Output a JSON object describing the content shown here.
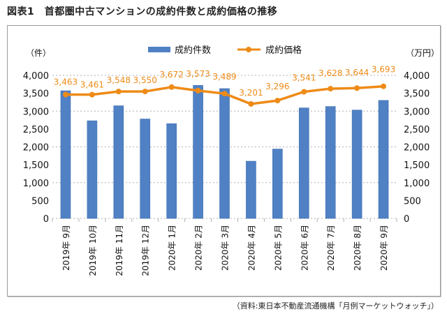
{
  "title": "図表1　首都圏中古マンションの成約件数と成約価格の推移",
  "source": "（資料:東日本不動産流通機構「月例マーケットウォッチ」）",
  "colors": {
    "bar": "#4F81C4",
    "line": "#EE8B17",
    "grid": "#b0b0b0"
  },
  "chart_data": {
    "type": "bar+line",
    "title": "首都圏中古マンションの成約件数と成約価格の推移",
    "categories": [
      "2019年 9月",
      "2019年 10月",
      "2019年 11月",
      "2019年 12月",
      "2020年 1月",
      "2020年 2月",
      "2020年 3月",
      "2020年 4月",
      "2020年 5月",
      "2020年 6月",
      "2020年 7月",
      "2020年 8月",
      "2020年 9月"
    ],
    "series": [
      {
        "name": "成約件数",
        "type": "bar",
        "axis": "left",
        "values": [
          3570,
          2730,
          3150,
          2780,
          2650,
          3720,
          3630,
          1600,
          1940,
          3090,
          3130,
          3030,
          3300
        ]
      },
      {
        "name": "成約価格",
        "type": "line",
        "axis": "right",
        "values": [
          3463,
          3461,
          3548,
          3550,
          3672,
          3573,
          3489,
          3201,
          3296,
          3541,
          3628,
          3644,
          3693
        ],
        "labels": [
          "3,463",
          "3,461",
          "3,548",
          "3,550",
          "3,672",
          "3,573",
          "3,489",
          "3,201",
          "3,296",
          "3,541",
          "3,628",
          "3,644",
          "3,693"
        ]
      }
    ],
    "y_left": {
      "unit": "（件）",
      "ylim": [
        0,
        4000
      ],
      "ticks": [
        "0",
        "500",
        "1,000",
        "1,500",
        "2,000",
        "2,500",
        "3,000",
        "3,500",
        "4,000"
      ]
    },
    "y_right": {
      "unit": "（万円）",
      "ylim": [
        0,
        4000
      ],
      "ticks": [
        "0",
        "500",
        "1,000",
        "1,500",
        "2,000",
        "2,500",
        "3,000",
        "3,500",
        "4,000"
      ]
    },
    "grid": true,
    "legend": {
      "position": "top-center",
      "entries": [
        "成約件数",
        "成約価格"
      ]
    }
  }
}
